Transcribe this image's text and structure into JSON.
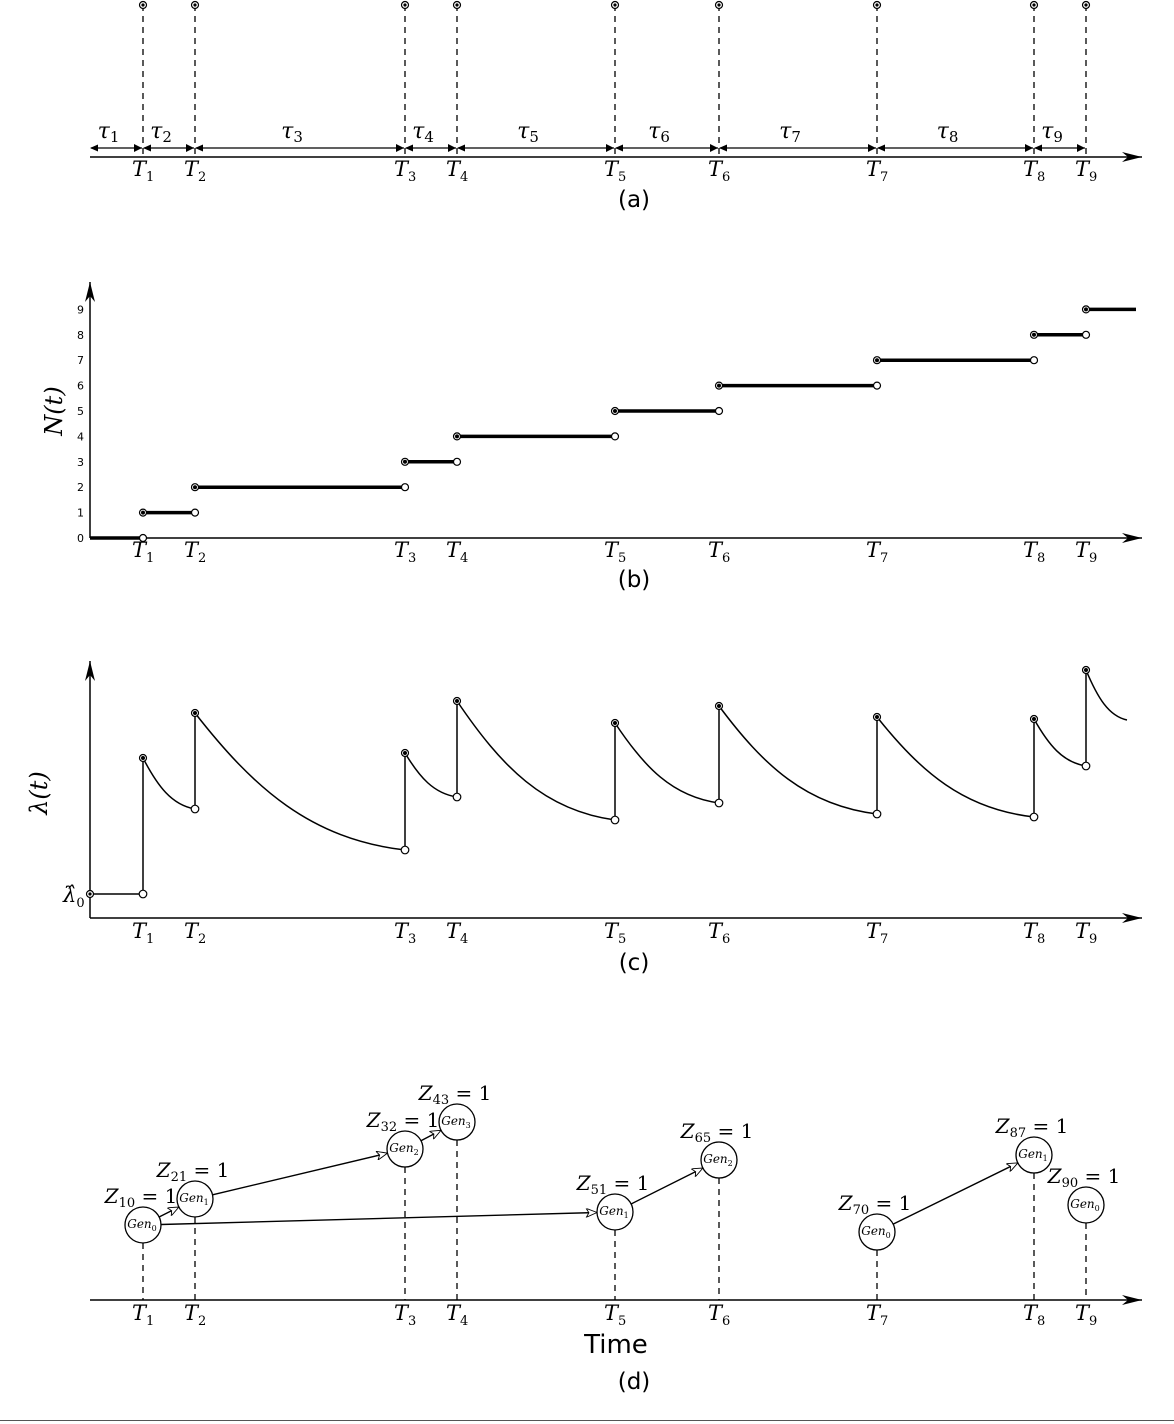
{
  "events": [
    {
      "label_main": "T",
      "label_sub": "1"
    },
    {
      "label_main": "T",
      "label_sub": "2"
    },
    {
      "label_main": "T",
      "label_sub": "3"
    },
    {
      "label_main": "T",
      "label_sub": "4"
    },
    {
      "label_main": "T",
      "label_sub": "5"
    },
    {
      "label_main": "T",
      "label_sub": "6"
    },
    {
      "label_main": "T",
      "label_sub": "7"
    },
    {
      "label_main": "T",
      "label_sub": "8"
    },
    {
      "label_main": "T",
      "label_sub": "9"
    }
  ],
  "intervals": [
    {
      "main": "τ",
      "sub": "1"
    },
    {
      "main": "τ",
      "sub": "2"
    },
    {
      "main": "τ",
      "sub": "3"
    },
    {
      "main": "τ",
      "sub": "4"
    },
    {
      "main": "τ",
      "sub": "5"
    },
    {
      "main": "τ",
      "sub": "6"
    },
    {
      "main": "τ",
      "sub": "7"
    },
    {
      "main": "τ",
      "sub": "8"
    },
    {
      "main": "τ",
      "sub": "9"
    }
  ],
  "panels": {
    "a": {
      "caption": "(a)"
    },
    "b": {
      "caption": "(b)",
      "ylabel": "N(t)",
      "ytick_labels": [
        "0",
        "1",
        "2",
        "3",
        "4",
        "5",
        "6",
        "7",
        "8",
        "9"
      ]
    },
    "c": {
      "caption": "(c)",
      "ylabel": "λ(t)",
      "baseline_label": "λ̂",
      "baseline_sub": "0"
    },
    "d": {
      "caption": "(d)",
      "xlabel": "Time"
    }
  },
  "chart_data": [
    {
      "type": "line",
      "title": "",
      "xlabel": "",
      "ylabel": "N(t)",
      "x": [
        "T1",
        "T2",
        "T3",
        "T4",
        "T5",
        "T6",
        "T7",
        "T8",
        "T9"
      ],
      "series": [
        {
          "values": [
            1,
            2,
            3,
            4,
            5,
            6,
            7,
            8,
            9
          ]
        }
      ],
      "ylim": [
        0,
        9
      ]
    }
  ],
  "tree_nodes": [
    {
      "gen": "Gen",
      "gen_sub": "0",
      "z": "Z",
      "z_sub": "10",
      "z_val": "= 1"
    },
    {
      "gen": "Gen",
      "gen_sub": "1",
      "z": "Z",
      "z_sub": "21",
      "z_val": "= 1"
    },
    {
      "gen": "Gen",
      "gen_sub": "2",
      "z": "Z",
      "z_sub": "32",
      "z_val": "= 1"
    },
    {
      "gen": "Gen",
      "gen_sub": "3",
      "z": "Z",
      "z_sub": "43",
      "z_val": "= 1"
    },
    {
      "gen": "Gen",
      "gen_sub": "1",
      "z": "Z",
      "z_sub": "51",
      "z_val": "= 1"
    },
    {
      "gen": "Gen",
      "gen_sub": "2",
      "z": "Z",
      "z_sub": "65",
      "z_val": "= 1"
    },
    {
      "gen": "Gen",
      "gen_sub": "0",
      "z": "Z",
      "z_sub": "70",
      "z_val": "= 1"
    },
    {
      "gen": "Gen",
      "gen_sub": "1",
      "z": "Z",
      "z_sub": "87",
      "z_val": "= 1"
    },
    {
      "gen": "Gen",
      "gen_sub": "0",
      "z": "Z",
      "z_sub": "90",
      "z_val": "= 1"
    }
  ],
  "tree_edges": [
    [
      0,
      1
    ],
    [
      1,
      2
    ],
    [
      2,
      3
    ],
    [
      0,
      4
    ],
    [
      4,
      5
    ],
    [
      6,
      7
    ]
  ]
}
